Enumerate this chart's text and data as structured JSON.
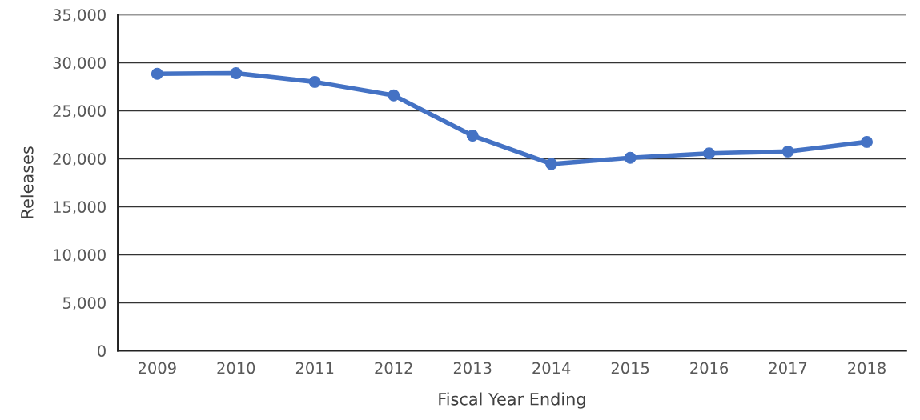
{
  "chart_data": {
    "type": "line",
    "xlabel": "Fiscal Year Ending",
    "ylabel": "Releases",
    "categories": [
      "2009",
      "2010",
      "2011",
      "2012",
      "2013",
      "2014",
      "2015",
      "2016",
      "2017",
      "2018"
    ],
    "series": [
      {
        "color": "#4472c4",
        "values": [
          28850,
          28900,
          28000,
          26600,
          22400,
          19450,
          20100,
          20550,
          20750,
          21750
        ]
      }
    ],
    "ylim": [
      0,
      35000
    ],
    "yticks": [
      {
        "value": 0,
        "label": "0"
      },
      {
        "value": 5000,
        "label": "5,000"
      },
      {
        "value": 10000,
        "label": "10,000"
      },
      {
        "value": 15000,
        "label": "15,000"
      },
      {
        "value": 20000,
        "label": "20,000"
      },
      {
        "value": 25000,
        "label": "25,000"
      },
      {
        "value": 30000,
        "label": "30,000"
      },
      {
        "value": 35000,
        "label": "35,000"
      }
    ],
    "grid": "y",
    "marker": "circle",
    "line_style": "solid"
  }
}
